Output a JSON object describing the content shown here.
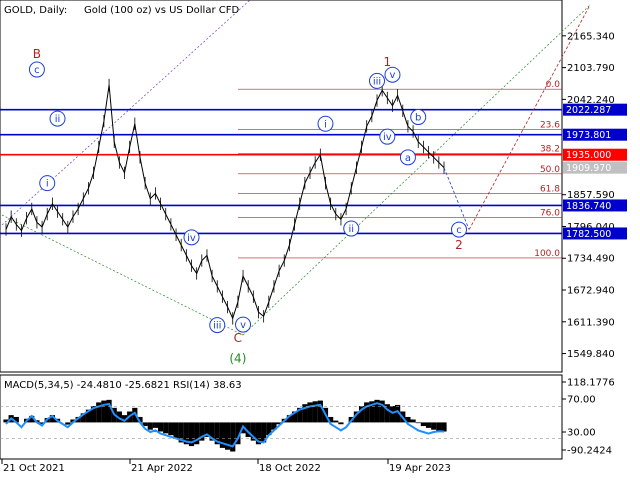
{
  "header": {
    "symbol": "GOLD, Daily:",
    "description": "Gold (100 oz) vs US Dollar CFD"
  },
  "colors": {
    "candle": "#000000",
    "hline_blue": "#0000cc",
    "hline_red": "#ff0000",
    "fib": "#b22222",
    "wave_blue": "#1c3fd6",
    "wave_red": "#b22222",
    "wave_green": "#228b22",
    "macd_hist": "#000000",
    "macd_signal": "#1e90ff",
    "price_tag_blue": "#0000cc",
    "price_tag_red": "#ff0000",
    "price_tag_current": "#c0c0c0"
  },
  "chart_data": [
    {
      "type": "line",
      "title": "GOLD, Daily:",
      "subtitle": "Gold (100 oz) vs US Dollar CFD",
      "y_axis_ticks": [
        "2165.340",
        "2103.790",
        "2042.240",
        "1857.590",
        "1796.040",
        "1734.490",
        "1672.940",
        "1611.390",
        "1549.840"
      ],
      "ylim": [
        1518.0,
        2196.0
      ],
      "x_axis_ticks": [
        "21 Oct 2021",
        "21 Apr 2022",
        "18 Oct 2022",
        "19 Apr 2023"
      ],
      "series": [
        {
          "values": [
            1790,
            1815,
            1800,
            1788,
            1812,
            1830,
            1804,
            1795,
            1820,
            1840,
            1825,
            1810,
            1795,
            1815,
            1830,
            1850,
            1870,
            1900,
            1950,
            2000,
            2070,
            1960,
            1920,
            1900,
            1950,
            1995,
            1930,
            1880,
            1850,
            1860,
            1840,
            1820,
            1800,
            1780,
            1760,
            1740,
            1720,
            1705,
            1730,
            1740,
            1700,
            1680,
            1660,
            1640,
            1618,
            1650,
            1700,
            1680,
            1660,
            1630,
            1622,
            1650,
            1680,
            1710,
            1730,
            1760,
            1800,
            1840,
            1880,
            1900,
            1920,
            1935,
            1880,
            1840,
            1820,
            1810,
            1830,
            1870,
            1910,
            1950,
            1990,
            2010,
            2040,
            2060,
            2045,
            2030,
            2050,
            2020,
            1990,
            1980,
            1960,
            1950,
            1940,
            1930,
            1920,
            1910
          ]
        }
      ],
      "horizontal_levels": [
        {
          "value": 2022.287,
          "label": "2022.287",
          "color": "blue"
        },
        {
          "value": 1973.801,
          "label": "1973.801",
          "color": "blue"
        },
        {
          "value": 1935.0,
          "label": "1935.000",
          "color": "red"
        },
        {
          "value": 1909.97,
          "label": "1909.970",
          "color": "current"
        },
        {
          "value": 1836.74,
          "label": "1836.740",
          "color": "blue"
        },
        {
          "value": 1782.5,
          "label": "1782.500",
          "color": "blue"
        }
      ],
      "fib_levels": [
        {
          "label": "0.0",
          "value": 2062.0
        },
        {
          "label": "23.6",
          "value": 1984.0
        },
        {
          "label": "38.2",
          "value": 1937.0
        },
        {
          "label": "50.0",
          "value": 1898.0
        },
        {
          "label": "61.8",
          "value": 1860.0
        },
        {
          "label": "76.0",
          "value": 1813.0
        },
        {
          "label": "100.0",
          "value": 1735.0
        }
      ],
      "wave_labels": [
        {
          "text": "B",
          "style": "red-text",
          "x": 6,
          "y": 2130
        },
        {
          "text": "c",
          "style": "blue-circle",
          "x": 6,
          "y": 2100
        },
        {
          "text": "ii",
          "style": "blue-circle",
          "x": 10,
          "y": 2005
        },
        {
          "text": "i",
          "style": "blue-circle",
          "x": 8,
          "y": 1880
        },
        {
          "text": "iv",
          "style": "blue-circle",
          "x": 36,
          "y": 1775
        },
        {
          "text": "iii",
          "style": "blue-circle",
          "x": 41,
          "y": 1605
        },
        {
          "text": "v",
          "style": "blue-circle",
          "x": 46,
          "y": 1606
        },
        {
          "text": "C",
          "style": "red-text",
          "x": 45,
          "y": 1580
        },
        {
          "text": "(4)",
          "style": "green-text",
          "x": 45,
          "y": 1540
        },
        {
          "text": "i",
          "style": "blue-circle",
          "x": 62,
          "y": 1995
        },
        {
          "text": "ii",
          "style": "blue-circle",
          "x": 67,
          "y": 1792
        },
        {
          "text": "iii",
          "style": "blue-circle",
          "x": 72,
          "y": 2078
        },
        {
          "text": "1",
          "style": "red-text",
          "x": 74,
          "y": 2115
        },
        {
          "text": "v",
          "style": "blue-circle",
          "x": 75,
          "y": 2090
        },
        {
          "text": "iv",
          "style": "blue-circle",
          "x": 74,
          "y": 1970
        },
        {
          "text": "b",
          "style": "blue-circle",
          "x": 80,
          "y": 2008
        },
        {
          "text": "a",
          "style": "blue-circle",
          "x": 78,
          "y": 1930
        },
        {
          "text": "c",
          "style": "blue-circle",
          "x": 88,
          "y": 1790
        },
        {
          "text": "2",
          "style": "red-text",
          "x": 88,
          "y": 1760
        }
      ]
    },
    {
      "type": "bar",
      "title": "MACD(5,34,5) -24.4810 -25.6821 RSI(14) 38.63",
      "y_axis_ticks": [
        "118.1776",
        "70.00",
        "30.00",
        "-90.2424"
      ],
      "ylim": [
        -95,
        122
      ],
      "series": [
        {
          "name": "MACD(5,34,5)",
          "values": [
            8,
            20,
            15,
            0,
            10,
            18,
            6,
            -4,
            12,
            20,
            10,
            0,
            -6,
            8,
            15,
            25,
            35,
            45,
            55,
            60,
            62,
            40,
            30,
            20,
            30,
            40,
            15,
            -10,
            -20,
            -15,
            -25,
            -30,
            -35,
            -45,
            -55,
            -60,
            -65,
            -60,
            -50,
            -40,
            -50,
            -60,
            -70,
            -75,
            -80,
            -60,
            -30,
            -40,
            -50,
            -60,
            -55,
            -35,
            -20,
            -5,
            10,
            20,
            30,
            40,
            50,
            55,
            58,
            60,
            40,
            15,
            5,
            -5,
            0,
            15,
            30,
            45,
            55,
            58,
            62,
            60,
            50,
            45,
            48,
            30,
            15,
            8,
            -2,
            -10,
            -15,
            -20,
            -24,
            -25
          ]
        },
        {
          "name": "RSI(14)",
          "values": [
            48,
            55,
            50,
            44,
            52,
            58,
            50,
            46,
            54,
            58,
            52,
            48,
            44,
            50,
            55,
            60,
            64,
            68,
            70,
            72,
            73,
            60,
            55,
            52,
            58,
            62,
            50,
            42,
            38,
            40,
            36,
            34,
            32,
            30,
            28,
            26,
            25,
            28,
            32,
            35,
            30,
            26,
            24,
            22,
            20,
            30,
            45,
            38,
            32,
            26,
            25,
            34,
            40,
            46,
            52,
            58,
            62,
            66,
            68,
            70,
            71,
            72,
            60,
            48,
            44,
            40,
            44,
            52,
            60,
            66,
            70,
            72,
            74,
            72,
            66,
            62,
            64,
            56,
            48,
            44,
            40,
            38,
            36,
            38,
            39,
            38.63
          ]
        }
      ]
    }
  ]
}
